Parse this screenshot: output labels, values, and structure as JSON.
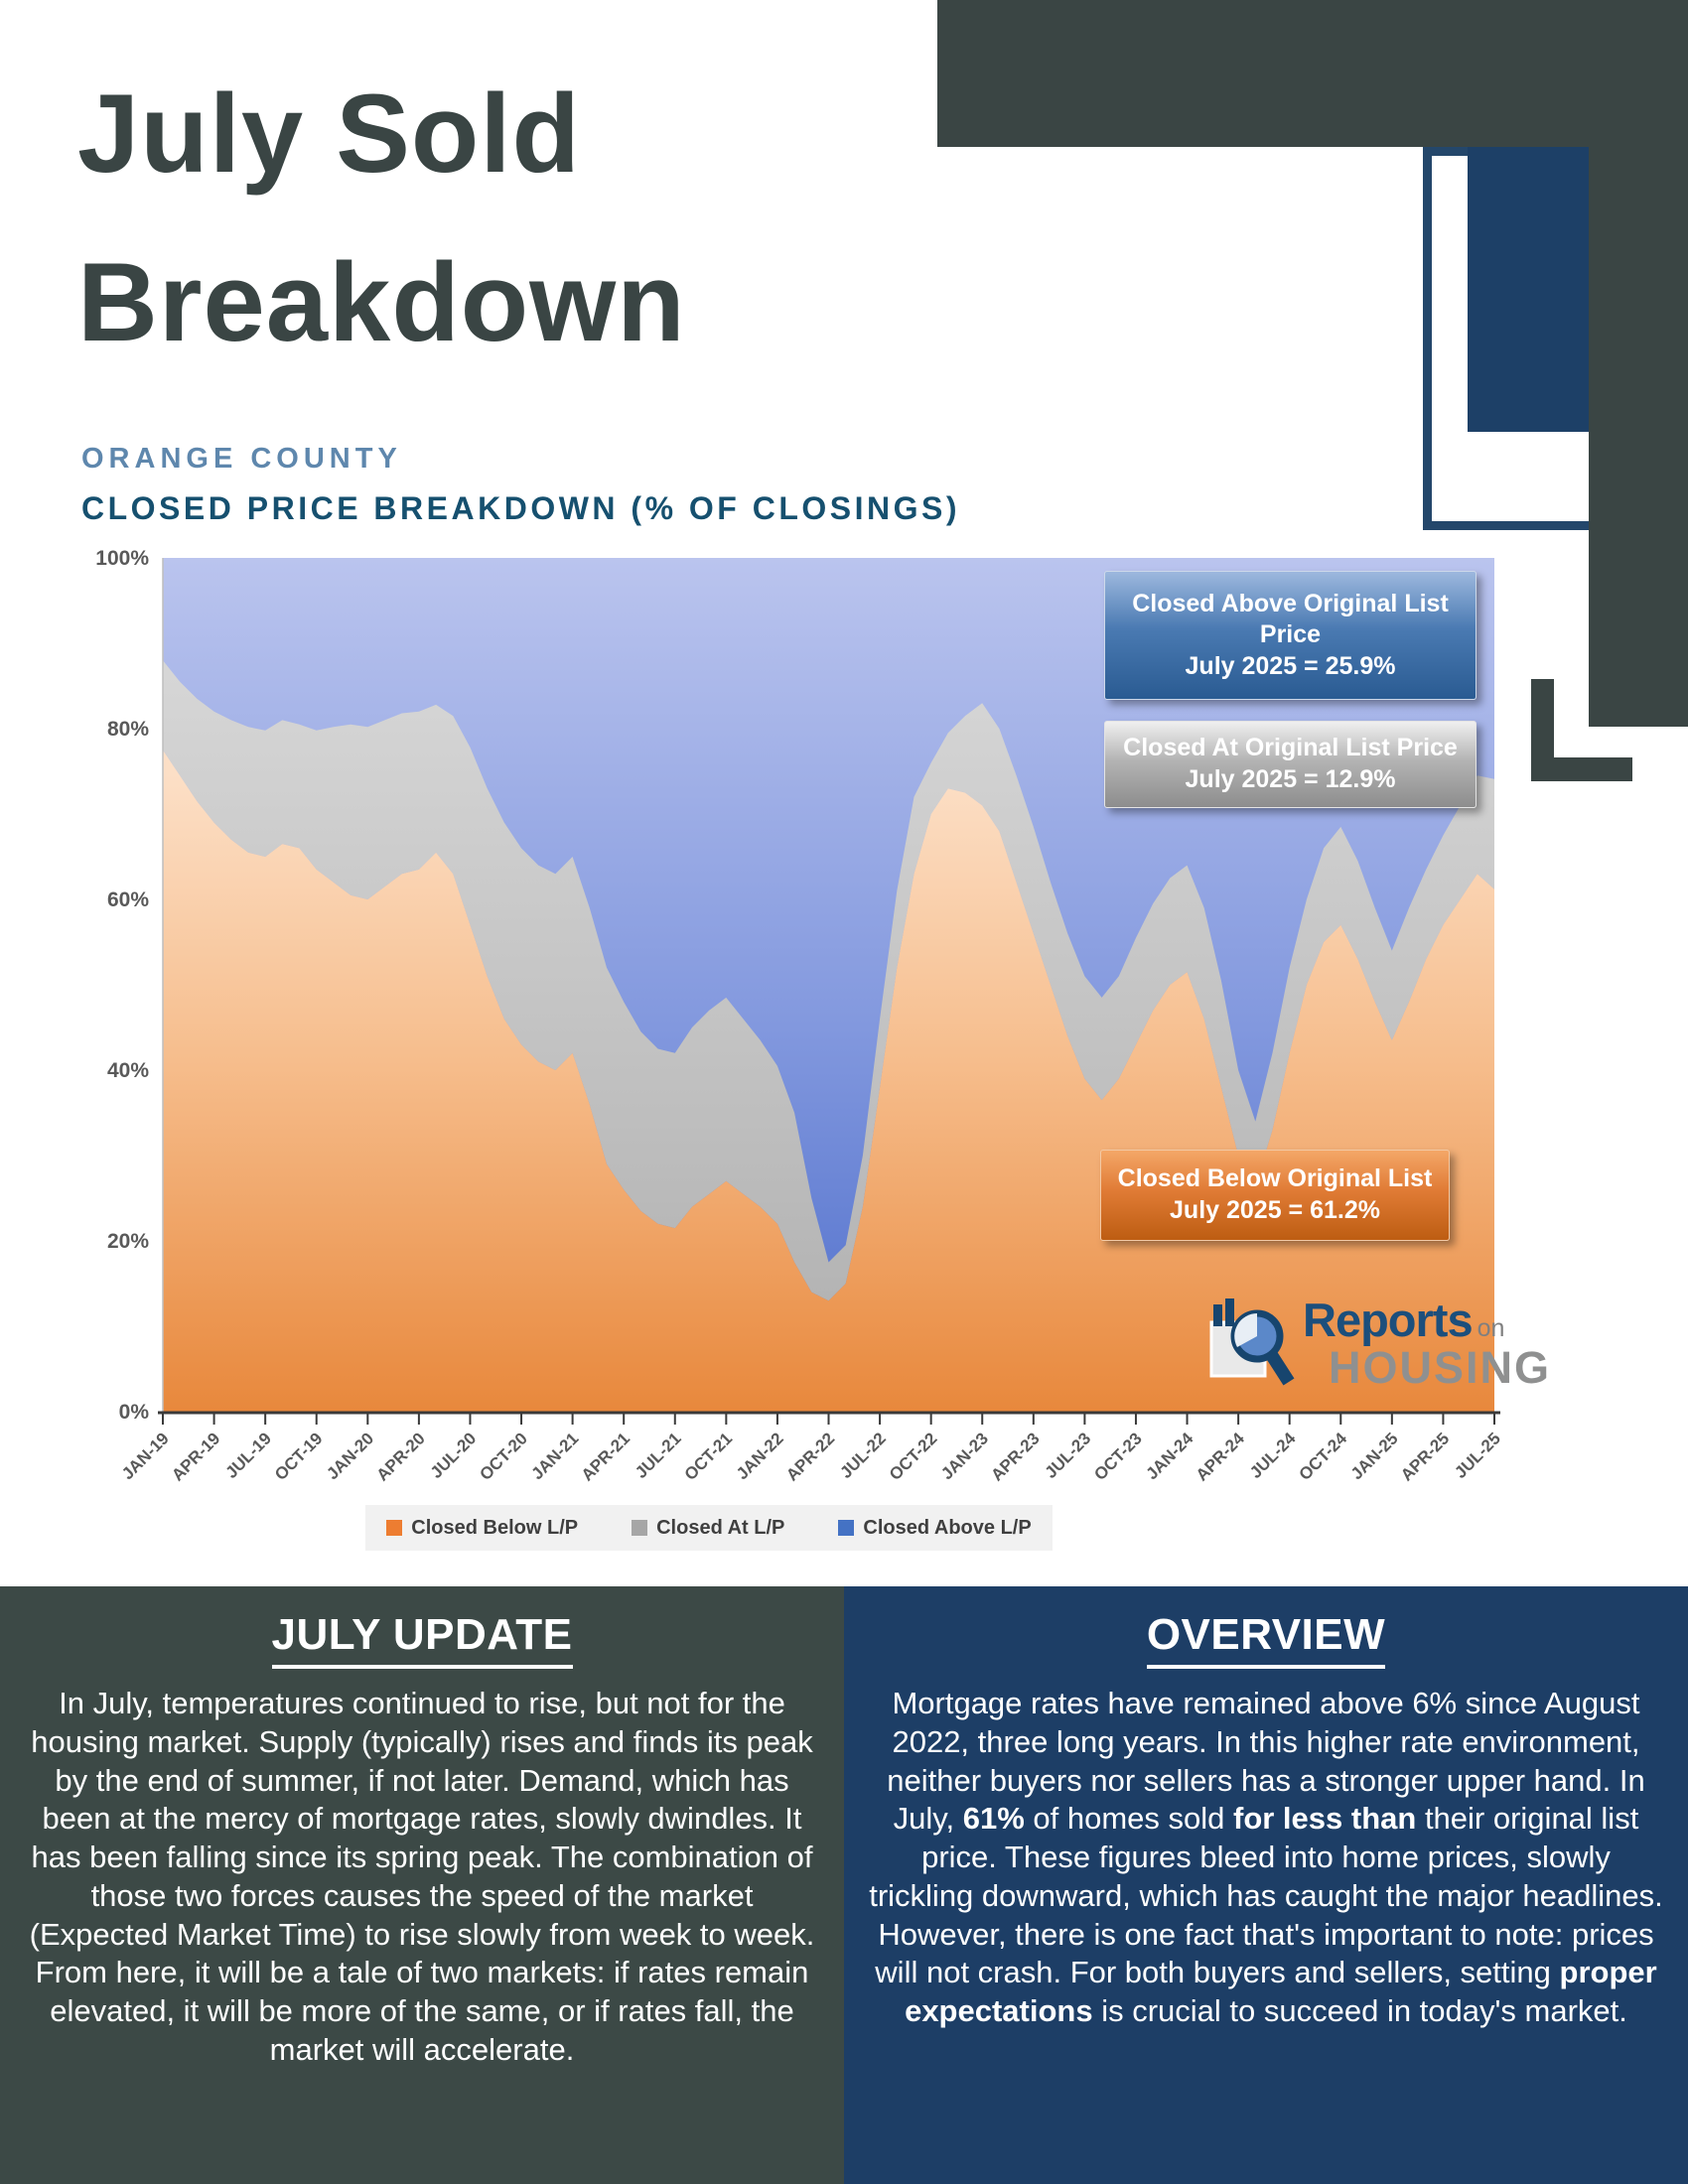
{
  "title": {
    "line1": "July Sold",
    "line2": "Breakdown"
  },
  "subtitle": {
    "county": "ORANGE COUNTY",
    "heading": "CLOSED PRICE BREAKDOWN (% OF CLOSINGS)"
  },
  "chart_data": {
    "type": "area",
    "stacked": true,
    "title": "Closed Price Breakdown (% of Closings)",
    "x_start": "JAN-19",
    "x_end": "JUL-25",
    "x_interval": "monthly",
    "ylim": [
      0,
      100
    ],
    "grid": false,
    "legend_position": "bottom",
    "y_tick_labels": [
      "100%",
      "80%",
      "60%",
      "40%",
      "20%",
      "0%"
    ],
    "x_tick_labels": [
      "JAN-19",
      "APR-19",
      "JUL-19",
      "OCT-19",
      "JAN-20",
      "APR-20",
      "JUL-20",
      "OCT-20",
      "JAN-21",
      "APR-21",
      "JUL-21",
      "OCT-21",
      "JAN-22",
      "APR-22",
      "JUL-22",
      "OCT-22",
      "JAN-23",
      "APR-23",
      "JUL-23",
      "OCT-23",
      "JAN-24",
      "APR-24",
      "JUL-24",
      "OCT-24",
      "JAN-25",
      "APR-25",
      "JUL-25"
    ],
    "series": [
      {
        "name": "Closed Below L/P",
        "color": "#ED7D31",
        "values": [
          77.5,
          74.5,
          71.5,
          69,
          67,
          65.5,
          65,
          66.5,
          66,
          63.5,
          62,
          60.5,
          60,
          61.5,
          63,
          63.5,
          65.5,
          63,
          57,
          51,
          46,
          43,
          41,
          40,
          42,
          36,
          29,
          26,
          23.5,
          22,
          21.5,
          24,
          25.5,
          27,
          25.5,
          24,
          22,
          17.5,
          14,
          13,
          15,
          24,
          38,
          52,
          63,
          70,
          73,
          72.5,
          71,
          68,
          62,
          56,
          50,
          44,
          39,
          36.5,
          39,
          43,
          47,
          50,
          51.5,
          46,
          38,
          30,
          26.5,
          33,
          42,
          50,
          55,
          57,
          53,
          48,
          43.5,
          48,
          53,
          57,
          60,
          63,
          61.2
        ]
      },
      {
        "name": "Closed At L/P",
        "color": "#A6A6A6",
        "values": [
          10.5,
          11,
          12,
          13,
          14,
          14.7,
          14.8,
          14.5,
          14.5,
          16.3,
          18.2,
          20,
          20.2,
          19.5,
          18.8,
          18.5,
          17.3,
          18.5,
          20.8,
          22,
          23,
          23,
          23,
          23,
          23,
          23,
          23,
          22,
          21,
          20.5,
          20.5,
          21,
          21.5,
          21.5,
          20.5,
          19.5,
          18.5,
          17.5,
          11,
          4.5,
          4.5,
          6,
          8,
          9,
          9,
          6,
          6.5,
          9,
          12,
          12,
          12.5,
          12.5,
          12,
          12,
          12,
          12,
          12,
          12.5,
          12.5,
          12.5,
          12.5,
          13,
          12.5,
          10,
          7.5,
          9,
          10,
          10,
          11,
          11.5,
          11.5,
          11,
          10.5,
          11,
          10.5,
          10.5,
          11,
          11.5,
          12.9
        ]
      },
      {
        "name": "Closed Above L/P",
        "color": "#4472C4",
        "values": [
          12,
          14.5,
          16.5,
          18,
          19,
          19.8,
          20.2,
          19,
          19.5,
          20.2,
          19.8,
          19.5,
          19.8,
          19,
          18.2,
          18,
          17.2,
          18.5,
          22.2,
          27,
          31,
          34,
          36,
          37,
          35,
          41,
          48,
          52,
          55.5,
          57.5,
          58,
          55,
          53,
          51.5,
          54,
          56.5,
          59.5,
          65,
          75,
          82.5,
          80.5,
          70,
          54,
          39,
          28,
          24,
          20.5,
          18.5,
          17,
          20,
          25.5,
          31.5,
          38,
          44,
          49,
          51.5,
          49,
          44.5,
          40.5,
          37.5,
          36,
          41,
          49.5,
          60,
          66,
          58,
          48,
          40,
          34,
          31.5,
          35.5,
          41,
          46,
          41,
          36.5,
          32.5,
          29,
          25.5,
          25.9
        ]
      }
    ]
  },
  "annotations": {
    "above": {
      "title": "Closed Above Original List Price",
      "value": "July 2025 = 25.9%"
    },
    "at": {
      "title": "Closed At Original List Price",
      "value": "July 2025 = 12.9%"
    },
    "below": {
      "title": "Closed Below Original List",
      "value": "July 2025 = 61.2%"
    }
  },
  "legend": {
    "items": [
      {
        "label": "Closed Below L/P",
        "color": "#ED7D31"
      },
      {
        "label": "Closed At L/P",
        "color": "#A6A6A6"
      },
      {
        "label": "Closed Above L/P",
        "color": "#4472C4"
      }
    ]
  },
  "logo": {
    "reports": "Reports",
    "on": "on",
    "housing": "HOUSING"
  },
  "panels": {
    "july_update": {
      "heading": "JULY UPDATE",
      "body": "In July, temperatures continued to rise, but not for the housing market. Supply (typically) rises and finds its peak by the end of summer, if not later. Demand, which has been at the mercy of mortgage rates, slowly dwindles. It has been falling since its spring peak. The combination of those two forces causes the speed of the market (Expected Market Time) to rise slowly from week to week. From here, it will be a tale of two markets: if rates remain elevated, it will be more of the same, or if rates fall, the market will accelerate."
    },
    "overview": {
      "heading": "OVERVIEW",
      "segments": [
        {
          "text": "Mortgage rates have remained above 6% since August 2022, three long years. In this higher rate environment, neither buyers nor sellers has a stronger upper hand. In July, ",
          "bold": false
        },
        {
          "text": "61%",
          "bold": true
        },
        {
          "text": " of homes sold ",
          "bold": false
        },
        {
          "text": "for less than",
          "bold": true
        },
        {
          "text": " their original list price. These figures bleed into home prices, slowly trickling downward, which has caught the major headlines. However, there is one fact that's important to note: prices will not crash. For both buyers and sellers, setting ",
          "bold": false
        },
        {
          "text": "proper expectations",
          "bold": true
        },
        {
          "text": " is crucial to succeed in today's market.",
          "bold": false
        }
      ]
    }
  },
  "colors": {
    "decor_dark": "#3a4544",
    "decor_navy": "#1d4067",
    "panel_dark": "#3c4946",
    "panel_navy": "#1d3e66",
    "subtitle_steel": "#5e87ad",
    "subtitle_navy": "#16506f"
  }
}
